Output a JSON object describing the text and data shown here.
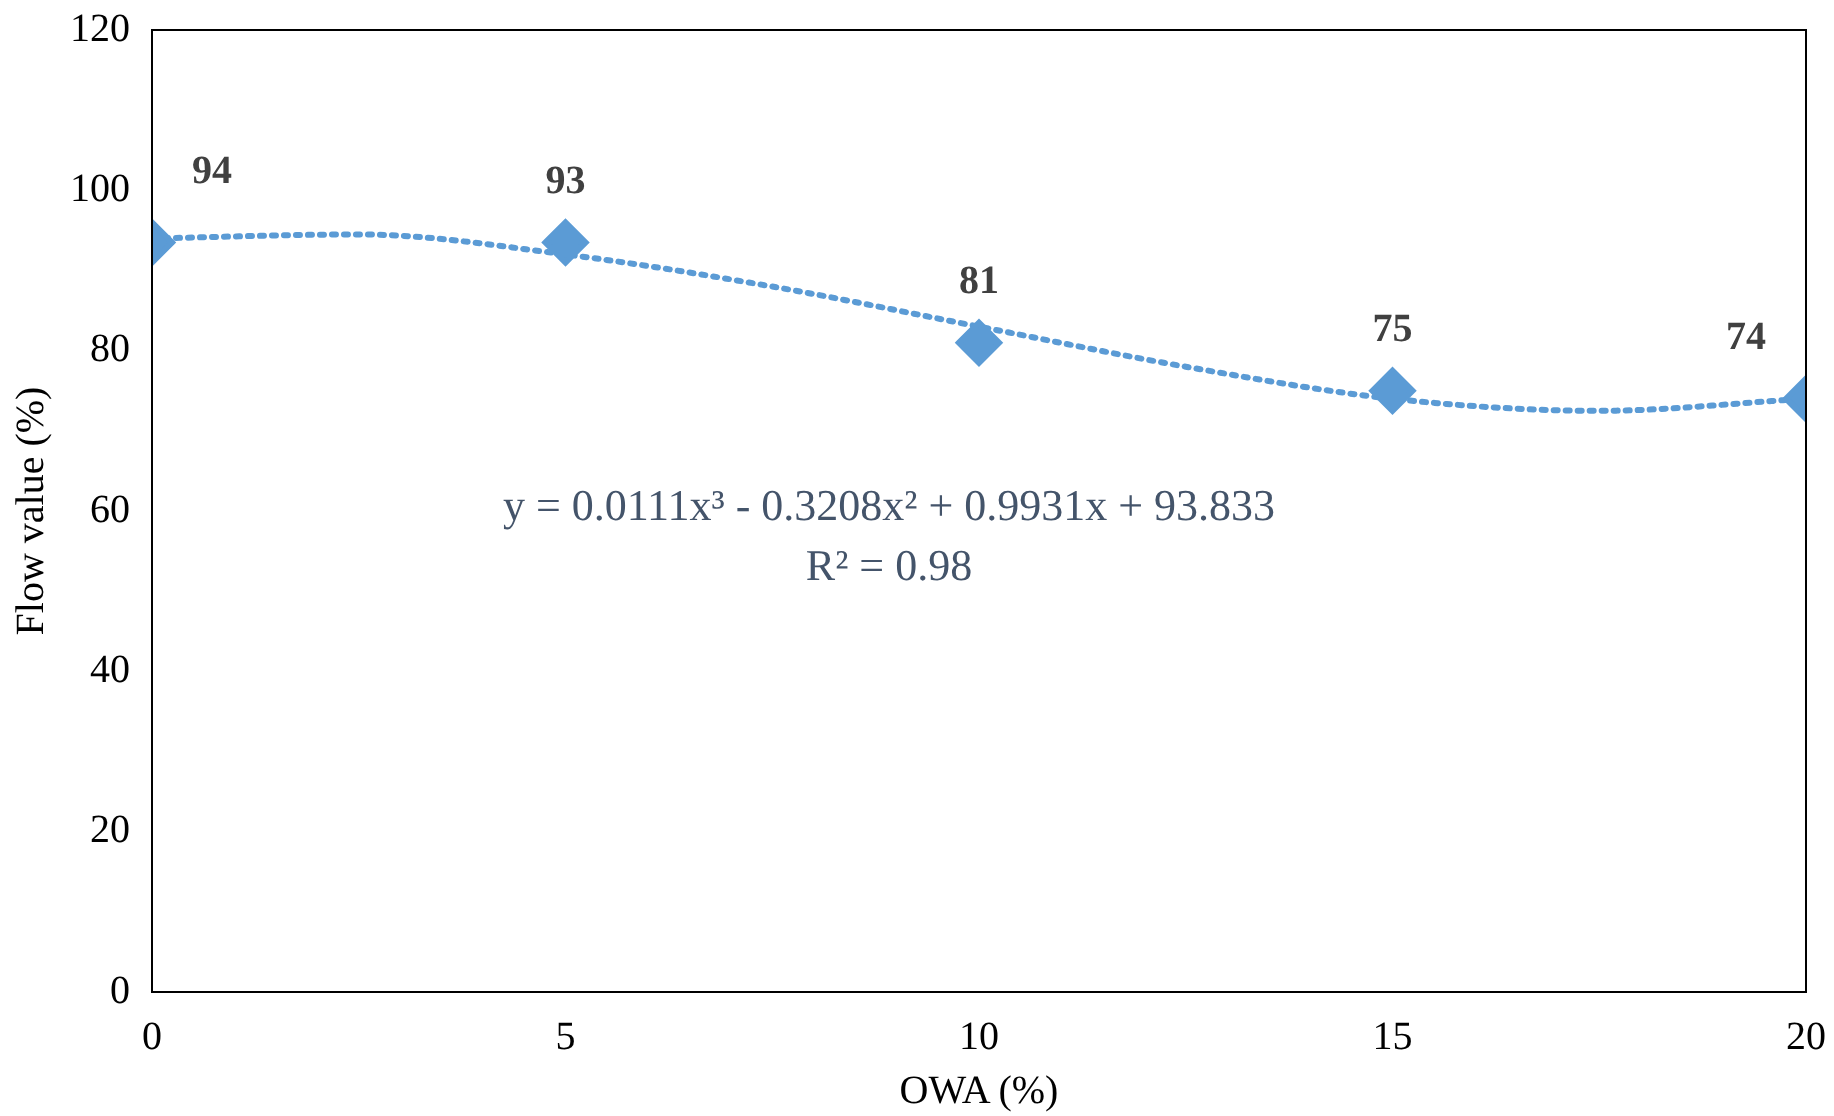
{
  "chart_data": {
    "type": "scatter",
    "xlabel": "OWA (%)",
    "ylabel": "Flow value (%)",
    "x": [
      0,
      5,
      10,
      15,
      20
    ],
    "series": [
      {
        "type": "scatter",
        "color": "#5b9bd5",
        "marker": "diamond",
        "values": [
          93.5,
          93.5,
          81,
          75,
          74
        ]
      },
      {
        "type": "line",
        "color": "#5b9bd5",
        "line_style": "dotted",
        "marker": "none",
        "x": [
          0,
          2.5,
          5,
          7.5,
          10,
          12.5,
          15,
          17.5,
          20
        ],
        "values": [
          94,
          94.5,
          92,
          88,
          83,
          78,
          74,
          72.5,
          74
        ]
      }
    ],
    "value_labels": [
      "94",
      "93",
      "81",
      "75",
      "74"
    ],
    "annotations": [
      "y = 0.0111x³ - 0.3208x² + 0.9931x + 93.833",
      "R² = 0.98"
    ],
    "xlim": [
      0,
      20
    ],
    "xticks": [
      0,
      5,
      10,
      15,
      20
    ],
    "ylim": [
      0,
      120
    ],
    "yticks": [
      0,
      20,
      40,
      60,
      80,
      100,
      120
    ],
    "grid": false,
    "legend": false
  }
}
